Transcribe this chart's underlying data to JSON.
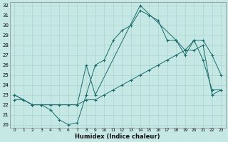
{
  "xlabel": "Humidex (Indice chaleur)",
  "bg_color": "#c5e8e5",
  "line_color": "#1a6b6b",
  "grid_color": "#aad4d0",
  "xlim": [
    -0.5,
    23.5
  ],
  "ylim": [
    19.7,
    32.3
  ],
  "xticks": [
    0,
    1,
    2,
    3,
    4,
    5,
    6,
    7,
    8,
    9,
    10,
    11,
    12,
    13,
    14,
    15,
    16,
    17,
    18,
    19,
    20,
    21,
    22,
    23
  ],
  "yticks": [
    20,
    21,
    22,
    23,
    24,
    25,
    26,
    27,
    28,
    29,
    30,
    31,
    32
  ],
  "line1_x": [
    0,
    1,
    2,
    3,
    4,
    5,
    6,
    7,
    8,
    9,
    10,
    11,
    12,
    13,
    14,
    15,
    16,
    17,
    18,
    19,
    20,
    21,
    22,
    23
  ],
  "line1_y": [
    23.0,
    22.5,
    22.0,
    22.0,
    21.5,
    20.5,
    20.0,
    20.2,
    23.0,
    26.0,
    26.5,
    28.5,
    29.5,
    30.0,
    31.5,
    31.0,
    30.5,
    28.5,
    28.5,
    27.5,
    28.5,
    28.5,
    27.0,
    25.0
  ],
  "line2_x": [
    0,
    2,
    3,
    7,
    8,
    9,
    14,
    18,
    19,
    20,
    21,
    22,
    23
  ],
  "line2_y": [
    23.0,
    22.0,
    22.0,
    22.0,
    26.0,
    23.0,
    32.0,
    28.5,
    27.0,
    28.5,
    26.5,
    23.5,
    23.5
  ],
  "line3_x": [
    0,
    1,
    2,
    3,
    4,
    5,
    6,
    7,
    8,
    9,
    10,
    11,
    12,
    13,
    14,
    15,
    16,
    17,
    18,
    19,
    20,
    21,
    22,
    23
  ],
  "line3_y": [
    22.5,
    22.5,
    22.0,
    22.0,
    22.0,
    22.0,
    22.0,
    22.0,
    22.5,
    22.5,
    23.0,
    23.5,
    24.0,
    24.5,
    25.0,
    25.5,
    26.0,
    26.5,
    27.0,
    27.5,
    27.5,
    28.0,
    23.0,
    23.5
  ]
}
